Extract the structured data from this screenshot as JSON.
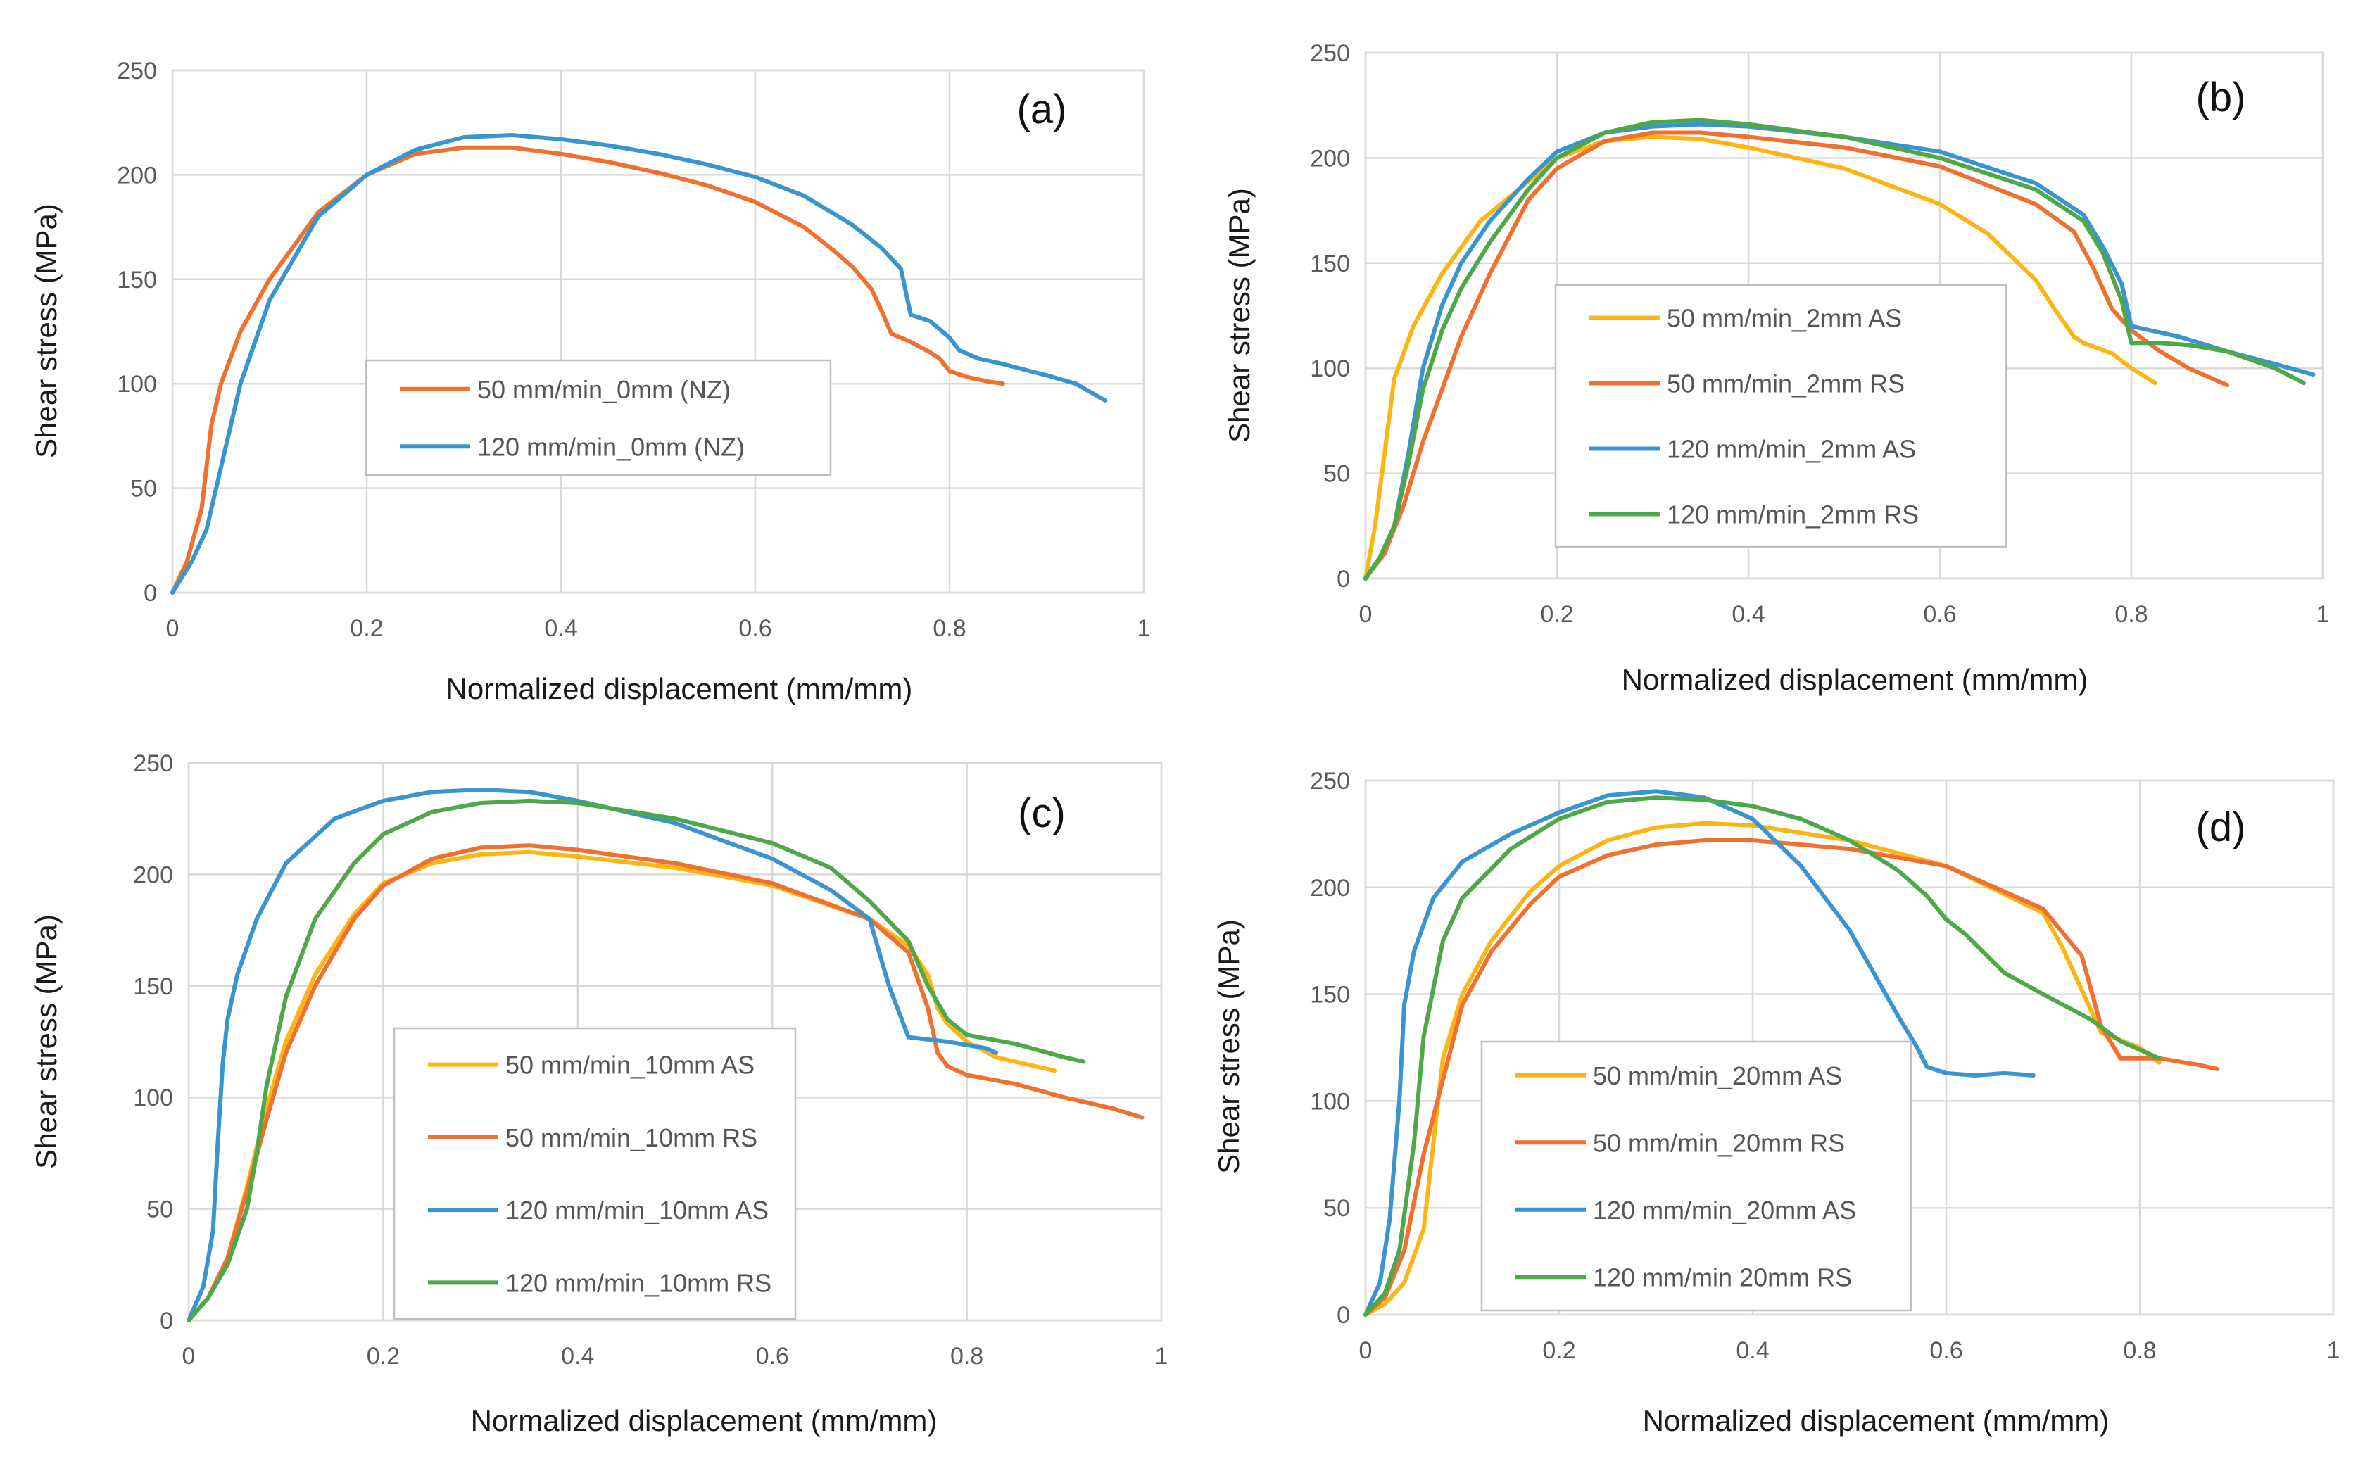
{
  "colors": {
    "orange": "#f07030",
    "blue": "#3a95cf",
    "yellow": "#fdb515",
    "green": "#4ea84a"
  },
  "chart_data": [
    {
      "panel": "(a)",
      "type": "line",
      "xlabel": "Normalized displacement (mm/mm)",
      "ylabel": "Shear stress (MPa)",
      "xlim": [
        0,
        1
      ],
      "ylim": [
        0,
        250
      ],
      "xticks": [
        "0",
        "0.2",
        "0.4",
        "0.6",
        "0.8",
        "1"
      ],
      "yticks": [
        "0",
        "50",
        "100",
        "150",
        "200",
        "250"
      ],
      "legend": "center",
      "series": [
        {
          "name": "50 mm/min_0mm (NZ)",
          "color": "#f07030",
          "x": [
            0,
            0.015,
            0.03,
            0.04,
            0.05,
            0.07,
            0.1,
            0.15,
            0.2,
            0.25,
            0.3,
            0.35,
            0.4,
            0.45,
            0.5,
            0.55,
            0.6,
            0.65,
            0.68,
            0.7,
            0.72,
            0.73,
            0.74,
            0.76,
            0.78,
            0.79,
            0.8,
            0.82,
            0.84,
            0.855
          ],
          "y": [
            0,
            15,
            40,
            80,
            100,
            125,
            150,
            182,
            200,
            210,
            213,
            213,
            210,
            206,
            201,
            195,
            187,
            175,
            164,
            156,
            145,
            135,
            124,
            120,
            115,
            112,
            106,
            103,
            101,
            100
          ]
        },
        {
          "name": "120 mm/min_0mm (NZ)",
          "color": "#3a95cf",
          "x": [
            0,
            0.02,
            0.035,
            0.05,
            0.07,
            0.1,
            0.15,
            0.2,
            0.25,
            0.3,
            0.35,
            0.4,
            0.45,
            0.5,
            0.55,
            0.6,
            0.65,
            0.7,
            0.73,
            0.75,
            0.76,
            0.78,
            0.8,
            0.81,
            0.83,
            0.85,
            0.9,
            0.93,
            0.96
          ],
          "y": [
            0,
            15,
            30,
            60,
            100,
            140,
            180,
            200,
            212,
            218,
            219,
            217,
            214,
            210,
            205,
            199,
            190,
            176,
            165,
            155,
            133,
            130,
            122,
            116,
            112,
            110,
            104,
            100,
            92
          ]
        }
      ]
    },
    {
      "panel": "(b)",
      "type": "line",
      "xlabel": "Normalized displacement (mm/mm)",
      "ylabel": "Shear stress (MPa)",
      "xlim": [
        0,
        1
      ],
      "ylim": [
        0,
        250
      ],
      "xticks": [
        "0",
        "0.2",
        "0.4",
        "0.6",
        "0.8",
        "1"
      ],
      "yticks": [
        "0",
        "50",
        "100",
        "150",
        "200",
        "250"
      ],
      "legend": "center",
      "series": [
        {
          "name": "50 mm/min_2mm AS",
          "color": "#fdb515",
          "x": [
            0,
            0.01,
            0.02,
            0.03,
            0.05,
            0.08,
            0.12,
            0.2,
            0.25,
            0.3,
            0.35,
            0.4,
            0.5,
            0.6,
            0.65,
            0.7,
            0.72,
            0.74,
            0.75,
            0.78,
            0.8,
            0.825
          ],
          "y": [
            0,
            25,
            60,
            95,
            120,
            145,
            170,
            200,
            208,
            210,
            209,
            205,
            195,
            178,
            164,
            142,
            128,
            115,
            112,
            107,
            100,
            93
          ]
        },
        {
          "name": "50 mm/min_2mm RS",
          "color": "#f07030",
          "x": [
            0,
            0.02,
            0.04,
            0.06,
            0.08,
            0.1,
            0.13,
            0.17,
            0.2,
            0.25,
            0.3,
            0.35,
            0.4,
            0.5,
            0.6,
            0.7,
            0.74,
            0.76,
            0.78,
            0.8,
            0.83,
            0.86,
            0.9
          ],
          "y": [
            0,
            12,
            35,
            65,
            90,
            115,
            145,
            180,
            195,
            208,
            212,
            212,
            210,
            205,
            196,
            178,
            165,
            148,
            128,
            118,
            108,
            100,
            92
          ]
        },
        {
          "name": "120 mm/min_2mm AS",
          "color": "#3a95cf",
          "x": [
            0,
            0.015,
            0.03,
            0.045,
            0.06,
            0.08,
            0.1,
            0.13,
            0.17,
            0.2,
            0.25,
            0.3,
            0.35,
            0.4,
            0.5,
            0.6,
            0.7,
            0.75,
            0.77,
            0.79,
            0.8,
            0.82,
            0.85,
            0.9,
            0.95,
            0.99
          ],
          "y": [
            0,
            10,
            25,
            60,
            100,
            130,
            150,
            170,
            190,
            203,
            212,
            215,
            216,
            215,
            210,
            203,
            188,
            173,
            158,
            140,
            120,
            118,
            115,
            108,
            102,
            97
          ]
        },
        {
          "name": "120 mm/min_2mm RS",
          "color": "#4ea84a",
          "x": [
            0,
            0.015,
            0.03,
            0.045,
            0.06,
            0.08,
            0.1,
            0.13,
            0.17,
            0.2,
            0.25,
            0.3,
            0.35,
            0.4,
            0.5,
            0.6,
            0.7,
            0.75,
            0.77,
            0.79,
            0.8,
            0.83,
            0.86,
            0.9,
            0.95,
            0.98
          ],
          "y": [
            0,
            10,
            25,
            55,
            90,
            118,
            138,
            160,
            185,
            200,
            212,
            217,
            218,
            216,
            210,
            200,
            185,
            170,
            155,
            132,
            112,
            112,
            111,
            108,
            100,
            93
          ]
        }
      ]
    },
    {
      "panel": "(c)",
      "type": "line",
      "xlabel": "Normalized displacement (mm/mm)",
      "ylabel": "Shear stress (MPa)",
      "xlim": [
        0,
        1
      ],
      "ylim": [
        0,
        250
      ],
      "xticks": [
        "0",
        "0.2",
        "0.4",
        "0.6",
        "0.8",
        "1"
      ],
      "yticks": [
        "0",
        "50",
        "100",
        "150",
        "200",
        "250"
      ],
      "legend": "center",
      "series": [
        {
          "name": "50 mm/min_10mm AS",
          "color": "#fdb515",
          "x": [
            0,
            0.02,
            0.04,
            0.06,
            0.08,
            0.1,
            0.13,
            0.17,
            0.2,
            0.25,
            0.3,
            0.35,
            0.4,
            0.5,
            0.6,
            0.7,
            0.74,
            0.76,
            0.77,
            0.78,
            0.8,
            0.83,
            0.86,
            0.89
          ],
          "y": [
            0,
            10,
            28,
            60,
            95,
            125,
            155,
            182,
            196,
            205,
            209,
            210,
            208,
            203,
            195,
            180,
            168,
            155,
            140,
            133,
            125,
            118,
            115,
            112
          ]
        },
        {
          "name": "50 mm/min_10mm RS",
          "color": "#f07030",
          "x": [
            0,
            0.02,
            0.04,
            0.06,
            0.08,
            0.1,
            0.13,
            0.17,
            0.2,
            0.25,
            0.3,
            0.35,
            0.4,
            0.5,
            0.6,
            0.7,
            0.74,
            0.76,
            0.77,
            0.78,
            0.8,
            0.85,
            0.9,
            0.95,
            0.98
          ],
          "y": [
            0,
            10,
            28,
            58,
            90,
            120,
            150,
            180,
            195,
            207,
            212,
            213,
            211,
            205,
            196,
            180,
            165,
            140,
            120,
            114,
            110,
            106,
            100,
            95,
            91
          ]
        },
        {
          "name": "120 mm/min_10mm AS",
          "color": "#3a95cf",
          "x": [
            0,
            0.015,
            0.025,
            0.03,
            0.035,
            0.04,
            0.05,
            0.07,
            0.1,
            0.15,
            0.2,
            0.25,
            0.3,
            0.35,
            0.4,
            0.5,
            0.6,
            0.66,
            0.7,
            0.72,
            0.74,
            0.78,
            0.82,
            0.83
          ],
          "y": [
            0,
            15,
            40,
            80,
            115,
            135,
            155,
            180,
            205,
            225,
            233,
            237,
            238,
            237,
            233,
            223,
            207,
            193,
            180,
            150,
            127,
            125,
            122,
            120
          ]
        },
        {
          "name": "120 mm/min_10mm RS",
          "color": "#4ea84a",
          "x": [
            0,
            0.02,
            0.04,
            0.06,
            0.07,
            0.08,
            0.1,
            0.13,
            0.17,
            0.2,
            0.25,
            0.3,
            0.35,
            0.4,
            0.5,
            0.6,
            0.66,
            0.7,
            0.74,
            0.76,
            0.78,
            0.8,
            0.85,
            0.9,
            0.92
          ],
          "y": [
            0,
            10,
            25,
            50,
            75,
            105,
            145,
            180,
            205,
            218,
            228,
            232,
            233,
            232,
            225,
            214,
            203,
            188,
            170,
            150,
            135,
            128,
            124,
            118,
            116
          ]
        }
      ]
    },
    {
      "panel": "(d)",
      "type": "line",
      "xlabel": "Normalized displacement (mm/mm)",
      "ylabel": "Shear stress (MPa)",
      "xlim": [
        0,
        1
      ],
      "ylim": [
        0,
        250
      ],
      "xticks": [
        "0",
        "0.2",
        "0.4",
        "0.6",
        "0.8",
        "1"
      ],
      "yticks": [
        "0",
        "50",
        "100",
        "150",
        "200",
        "250"
      ],
      "legend": "center",
      "series": [
        {
          "name": "50 mm/min_20mm AS",
          "color": "#fdb515",
          "x": [
            0,
            0.02,
            0.04,
            0.06,
            0.07,
            0.08,
            0.1,
            0.13,
            0.17,
            0.2,
            0.25,
            0.3,
            0.35,
            0.4,
            0.5,
            0.6,
            0.7,
            0.72,
            0.74,
            0.76,
            0.8,
            0.82
          ],
          "y": [
            0,
            5,
            15,
            40,
            80,
            120,
            150,
            175,
            198,
            210,
            222,
            228,
            230,
            229,
            222,
            210,
            188,
            172,
            152,
            132,
            125,
            118
          ]
        },
        {
          "name": "50 mm/min_20mm RS",
          "color": "#f07030",
          "x": [
            0,
            0.02,
            0.04,
            0.06,
            0.08,
            0.1,
            0.13,
            0.17,
            0.2,
            0.25,
            0.3,
            0.35,
            0.4,
            0.5,
            0.6,
            0.7,
            0.74,
            0.76,
            0.78,
            0.8,
            0.82,
            0.86,
            0.88
          ],
          "y": [
            0,
            8,
            30,
            75,
            110,
            145,
            170,
            192,
            205,
            215,
            220,
            222,
            222,
            218,
            210,
            190,
            168,
            135,
            120,
            120,
            120,
            117,
            115
          ]
        },
        {
          "name": "120 mm/min_20mm AS",
          "color": "#3a95cf",
          "x": [
            0,
            0.015,
            0.025,
            0.035,
            0.04,
            0.05,
            0.07,
            0.1,
            0.15,
            0.2,
            0.25,
            0.3,
            0.35,
            0.4,
            0.45,
            0.5,
            0.55,
            0.57,
            0.58,
            0.6,
            0.63,
            0.66,
            0.69
          ],
          "y": [
            0,
            15,
            45,
            100,
            145,
            170,
            195,
            212,
            225,
            235,
            243,
            245,
            242,
            232,
            210,
            180,
            140,
            125,
            116,
            113,
            112,
            113,
            112
          ]
        },
        {
          "name": "120 mm/min 20mm RS",
          "color": "#4ea84a",
          "x": [
            0,
            0.02,
            0.035,
            0.05,
            0.06,
            0.08,
            0.1,
            0.15,
            0.2,
            0.25,
            0.3,
            0.35,
            0.4,
            0.45,
            0.5,
            0.55,
            0.58,
            0.6,
            0.62,
            0.66,
            0.7,
            0.75,
            0.78,
            0.8,
            0.82
          ],
          "y": [
            0,
            10,
            30,
            80,
            130,
            175,
            195,
            218,
            232,
            240,
            242,
            241,
            238,
            232,
            222,
            208,
            196,
            185,
            178,
            160,
            150,
            138,
            128,
            124,
            120
          ]
        }
      ]
    }
  ]
}
